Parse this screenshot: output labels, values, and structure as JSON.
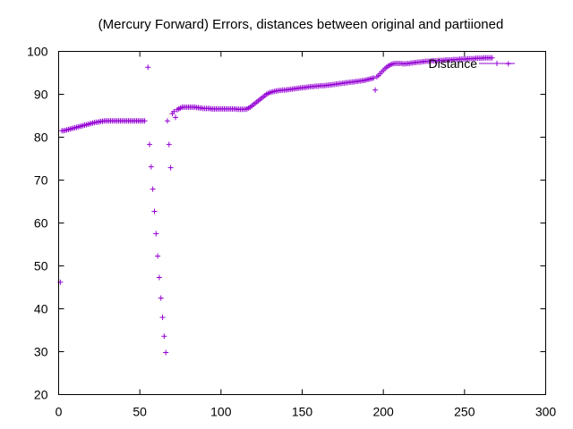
{
  "chart_data": {
    "type": "scatter",
    "title": "(Mercury Forward) Errors, distances between original and partiioned",
    "xlabel": "",
    "ylabel": "",
    "xlim": [
      0,
      300
    ],
    "ylim": [
      20,
      100
    ],
    "xticks": [
      0,
      50,
      100,
      150,
      200,
      250,
      300
    ],
    "yticks": [
      20,
      30,
      40,
      50,
      60,
      70,
      80,
      90,
      100
    ],
    "grid": false,
    "legend_position": "top-right",
    "series": [
      {
        "name": "Distance",
        "color": "#9400d3",
        "marker": "plus",
        "points": [
          [
            1,
            46.2
          ],
          [
            2,
            81.5
          ],
          [
            3,
            81.5
          ],
          [
            4,
            81.6
          ],
          [
            5,
            81.7
          ],
          [
            6,
            81.8
          ],
          [
            7,
            81.9
          ],
          [
            8,
            82.0
          ],
          [
            9,
            82.1
          ],
          [
            10,
            82.2
          ],
          [
            11,
            82.3
          ],
          [
            12,
            82.4
          ],
          [
            13,
            82.5
          ],
          [
            14,
            82.6
          ],
          [
            15,
            82.7
          ],
          [
            16,
            82.8
          ],
          [
            17,
            82.9
          ],
          [
            18,
            83.0
          ],
          [
            19,
            83.1
          ],
          [
            20,
            83.2
          ],
          [
            21,
            83.3
          ],
          [
            22,
            83.4
          ],
          [
            23,
            83.5
          ],
          [
            24,
            83.5
          ],
          [
            25,
            83.6
          ],
          [
            26,
            83.7
          ],
          [
            27,
            83.7
          ],
          [
            28,
            83.8
          ],
          [
            29,
            83.8
          ],
          [
            30,
            83.8
          ],
          [
            31,
            83.8
          ],
          [
            32,
            83.8
          ],
          [
            33,
            83.8
          ],
          [
            34,
            83.8
          ],
          [
            35,
            83.8
          ],
          [
            36,
            83.8
          ],
          [
            37,
            83.8
          ],
          [
            38,
            83.8
          ],
          [
            39,
            83.8
          ],
          [
            40,
            83.8
          ],
          [
            41,
            83.8
          ],
          [
            42,
            83.8
          ],
          [
            43,
            83.8
          ],
          [
            44,
            83.8
          ],
          [
            45,
            83.8
          ],
          [
            46,
            83.8
          ],
          [
            47,
            83.8
          ],
          [
            48,
            83.8
          ],
          [
            49,
            83.8
          ],
          [
            50,
            83.8
          ],
          [
            51,
            83.8
          ],
          [
            52,
            83.8
          ],
          [
            53,
            83.8
          ],
          [
            55,
            96.3
          ],
          [
            56,
            78.3
          ],
          [
            57,
            73.1
          ],
          [
            58,
            67.9
          ],
          [
            59,
            62.7
          ],
          [
            60,
            57.5
          ],
          [
            61,
            52.3
          ],
          [
            62,
            47.3
          ],
          [
            63,
            42.5
          ],
          [
            64,
            38.0
          ],
          [
            65,
            33.6
          ],
          [
            66,
            29.8
          ],
          [
            67,
            83.8
          ],
          [
            68,
            78.3
          ],
          [
            69,
            72.9
          ],
          [
            70,
            85.5
          ],
          [
            71,
            86.0
          ],
          [
            72,
            84.6
          ],
          [
            73,
            86.4
          ],
          [
            74,
            86.6
          ],
          [
            75,
            86.8
          ],
          [
            76,
            87.0
          ],
          [
            77,
            87.0
          ],
          [
            78,
            87.0
          ],
          [
            79,
            87.0
          ],
          [
            80,
            87.0
          ],
          [
            81,
            87.0
          ],
          [
            82,
            87.0
          ],
          [
            83,
            87.0
          ],
          [
            84,
            87.0
          ],
          [
            85,
            86.9
          ],
          [
            86,
            86.9
          ],
          [
            87,
            86.8
          ],
          [
            88,
            86.8
          ],
          [
            89,
            86.7
          ],
          [
            90,
            86.7
          ],
          [
            91,
            86.7
          ],
          [
            92,
            86.7
          ],
          [
            93,
            86.7
          ],
          [
            94,
            86.6
          ],
          [
            95,
            86.6
          ],
          [
            96,
            86.6
          ],
          [
            97,
            86.6
          ],
          [
            98,
            86.6
          ],
          [
            99,
            86.6
          ],
          [
            100,
            86.6
          ],
          [
            101,
            86.6
          ],
          [
            102,
            86.6
          ],
          [
            103,
            86.6
          ],
          [
            104,
            86.6
          ],
          [
            105,
            86.6
          ],
          [
            106,
            86.6
          ],
          [
            107,
            86.6
          ],
          [
            108,
            86.6
          ],
          [
            109,
            86.6
          ],
          [
            110,
            86.5
          ],
          [
            111,
            86.5
          ],
          [
            112,
            86.5
          ],
          [
            113,
            86.5
          ],
          [
            114,
            86.5
          ],
          [
            115,
            86.5
          ],
          [
            116,
            86.6
          ],
          [
            117,
            86.8
          ],
          [
            118,
            87.0
          ],
          [
            119,
            87.3
          ],
          [
            120,
            87.6
          ],
          [
            121,
            87.9
          ],
          [
            122,
            88.2
          ],
          [
            123,
            88.5
          ],
          [
            124,
            88.8
          ],
          [
            125,
            89.1
          ],
          [
            126,
            89.4
          ],
          [
            127,
            89.7
          ],
          [
            128,
            90.0
          ],
          [
            129,
            90.2
          ],
          [
            130,
            90.4
          ],
          [
            131,
            90.5
          ],
          [
            132,
            90.6
          ],
          [
            133,
            90.7
          ],
          [
            134,
            90.8
          ],
          [
            135,
            90.8
          ],
          [
            136,
            90.9
          ],
          [
            137,
            90.9
          ],
          [
            138,
            91.0
          ],
          [
            139,
            91.0
          ],
          [
            140,
            91.0
          ],
          [
            141,
            91.1
          ],
          [
            142,
            91.1
          ],
          [
            143,
            91.2
          ],
          [
            144,
            91.2
          ],
          [
            145,
            91.3
          ],
          [
            146,
            91.3
          ],
          [
            147,
            91.4
          ],
          [
            148,
            91.4
          ],
          [
            149,
            91.5
          ],
          [
            150,
            91.5
          ],
          [
            151,
            91.6
          ],
          [
            152,
            91.6
          ],
          [
            153,
            91.7
          ],
          [
            154,
            91.7
          ],
          [
            155,
            91.8
          ],
          [
            156,
            91.8
          ],
          [
            157,
            91.8
          ],
          [
            158,
            91.9
          ],
          [
            159,
            91.9
          ],
          [
            160,
            91.9
          ],
          [
            161,
            92.0
          ],
          [
            162,
            92.0
          ],
          [
            163,
            92.0
          ],
          [
            164,
            92.0
          ],
          [
            165,
            92.1
          ],
          [
            166,
            92.1
          ],
          [
            167,
            92.2
          ],
          [
            168,
            92.2
          ],
          [
            169,
            92.3
          ],
          [
            170,
            92.3
          ],
          [
            171,
            92.4
          ],
          [
            172,
            92.4
          ],
          [
            173,
            92.5
          ],
          [
            174,
            92.5
          ],
          [
            175,
            92.6
          ],
          [
            176,
            92.6
          ],
          [
            177,
            92.7
          ],
          [
            178,
            92.7
          ],
          [
            179,
            92.8
          ],
          [
            180,
            92.8
          ],
          [
            181,
            92.9
          ],
          [
            182,
            92.9
          ],
          [
            183,
            93.0
          ],
          [
            184,
            93.0
          ],
          [
            185,
            93.1
          ],
          [
            186,
            93.1
          ],
          [
            187,
            93.2
          ],
          [
            188,
            93.2
          ],
          [
            189,
            93.3
          ],
          [
            190,
            93.4
          ],
          [
            191,
            93.5
          ],
          [
            192,
            93.6
          ],
          [
            193,
            93.7
          ],
          [
            194,
            93.8
          ],
          [
            195,
            91.0
          ],
          [
            196,
            94.1
          ],
          [
            197,
            94.4
          ],
          [
            198,
            94.8
          ],
          [
            199,
            95.2
          ],
          [
            200,
            95.6
          ],
          [
            201,
            96.0
          ],
          [
            202,
            96.3
          ],
          [
            203,
            96.6
          ],
          [
            204,
            96.8
          ],
          [
            205,
            97.0
          ],
          [
            206,
            97.1
          ],
          [
            207,
            97.2
          ],
          [
            208,
            97.2
          ],
          [
            209,
            97.2
          ],
          [
            210,
            97.2
          ],
          [
            211,
            97.2
          ],
          [
            212,
            97.1
          ],
          [
            213,
            97.1
          ],
          [
            214,
            97.1
          ],
          [
            215,
            97.2
          ],
          [
            216,
            97.2
          ],
          [
            217,
            97.3
          ],
          [
            218,
            97.3
          ],
          [
            219,
            97.4
          ],
          [
            220,
            97.4
          ],
          [
            221,
            97.5
          ],
          [
            222,
            97.5
          ],
          [
            223,
            97.5
          ],
          [
            224,
            97.6
          ],
          [
            225,
            97.6
          ],
          [
            226,
            97.7
          ],
          [
            227,
            97.7
          ],
          [
            228,
            97.7
          ],
          [
            229,
            97.7
          ],
          [
            230,
            97.8
          ],
          [
            231,
            97.8
          ],
          [
            232,
            97.8
          ],
          [
            233,
            97.8
          ],
          [
            234,
            97.9
          ],
          [
            235,
            97.9
          ],
          [
            236,
            97.9
          ],
          [
            237,
            97.9
          ],
          [
            238,
            98.0
          ],
          [
            239,
            98.0
          ],
          [
            240,
            98.0
          ],
          [
            241,
            98.0
          ],
          [
            242,
            98.0
          ],
          [
            243,
            98.1
          ],
          [
            244,
            98.1
          ],
          [
            245,
            98.1
          ],
          [
            246,
            98.1
          ],
          [
            247,
            98.2
          ],
          [
            248,
            98.2
          ],
          [
            249,
            98.2
          ],
          [
            250,
            98.2
          ],
          [
            251,
            98.2
          ],
          [
            252,
            98.3
          ],
          [
            253,
            98.3
          ],
          [
            254,
            98.3
          ],
          [
            255,
            98.3
          ],
          [
            256,
            98.3
          ],
          [
            257,
            98.4
          ],
          [
            258,
            98.4
          ],
          [
            259,
            98.4
          ],
          [
            260,
            98.4
          ],
          [
            261,
            98.4
          ],
          [
            262,
            98.5
          ],
          [
            263,
            98.5
          ],
          [
            264,
            98.5
          ],
          [
            265,
            98.5
          ],
          [
            266,
            98.5
          ],
          [
            267,
            98.5
          ],
          [
            277,
            97.1
          ]
        ]
      }
    ]
  }
}
